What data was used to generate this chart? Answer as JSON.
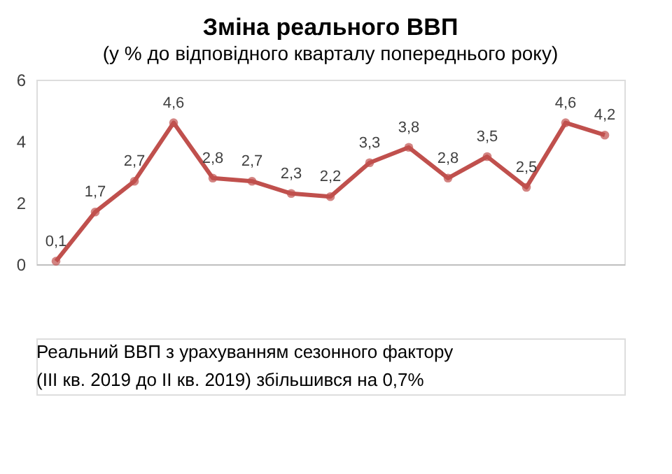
{
  "chart_data": {
    "type": "line",
    "title": "Зміна реального ВВП",
    "subtitle": "(у % до відповідного кварталу попереднього року)",
    "categories": [
      null,
      null,
      null,
      null,
      null,
      null,
      null,
      null,
      null,
      null,
      null,
      null,
      null,
      null,
      null
    ],
    "series": [
      {
        "color": "#c0504d",
        "values": [
          0.1,
          1.7,
          2.7,
          4.6,
          2.8,
          2.7,
          2.3,
          2.2,
          3.3,
          3.8,
          2.8,
          3.5,
          2.5,
          4.6,
          4.2
        ],
        "value_labels": [
          "0,1",
          "1,7",
          "2,7",
          "4,6",
          "2,8",
          "2,7",
          "2,3",
          "2,2",
          "3,3",
          "3,8",
          "2,8",
          "3,5",
          "2,5",
          "4,6",
          "4,2"
        ]
      }
    ],
    "ylim": [
      0,
      6
    ],
    "yticks": [
      0,
      2,
      4,
      6
    ],
    "grid": false,
    "legend": false,
    "marker": "circle",
    "line_style": "solid",
    "annotations": [
      "Реальний ВВП з урахуванням сезонного фактору",
      "(III кв. 2019 до II кв. 2019) збільшився на 0,7%"
    ]
  }
}
